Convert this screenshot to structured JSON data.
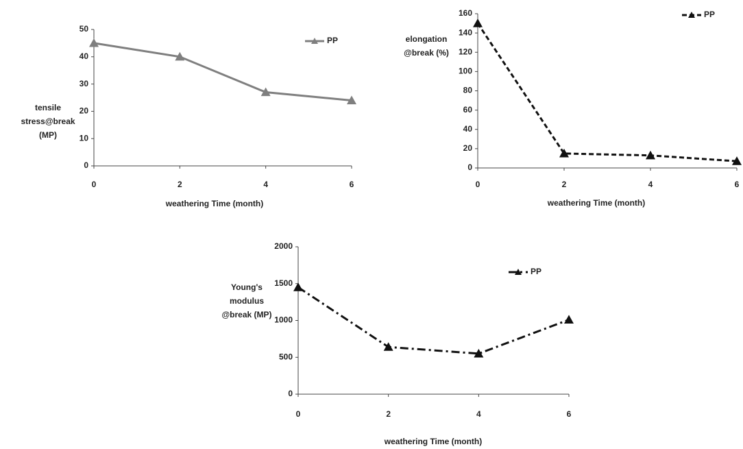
{
  "chart_data": [
    {
      "type": "line",
      "ylabel": [
        "tensile",
        "stress@break",
        "(MP)"
      ],
      "xlabel": "weathering Time (month)",
      "x": [
        0,
        2,
        4,
        6
      ],
      "xlim": [
        0,
        6
      ],
      "xticks": [
        0,
        2,
        4,
        6
      ],
      "ylim": [
        0,
        50
      ],
      "yticks": [
        0,
        10,
        20,
        30,
        40,
        50
      ],
      "series": [
        {
          "name": "PP",
          "color": "#7f7f7f",
          "line_style": "solid",
          "values": [
            45,
            40,
            27,
            24
          ]
        }
      ]
    },
    {
      "type": "line",
      "ylabel": [
        "elongation",
        "@break (%)"
      ],
      "xlabel": "weathering Time (month)",
      "x": [
        0,
        2,
        4,
        6
      ],
      "xlim": [
        0,
        6
      ],
      "xticks": [
        0,
        2,
        4,
        6
      ],
      "ylim": [
        0,
        160
      ],
      "yticks": [
        0,
        20,
        40,
        60,
        80,
        100,
        120,
        140,
        160
      ],
      "series": [
        {
          "name": "PP",
          "color": "#111111",
          "line_style": "dashed",
          "values": [
            150,
            15,
            13,
            7
          ]
        }
      ]
    },
    {
      "type": "line",
      "ylabel": [
        "Young's",
        "modulus",
        "@break (MP)"
      ],
      "xlabel": "weathering Time (month)",
      "x": [
        0,
        2,
        4,
        6
      ],
      "xlim": [
        0,
        6
      ],
      "xticks": [
        0,
        2,
        4,
        6
      ],
      "ylim": [
        0,
        2000
      ],
      "yticks": [
        0,
        500,
        1000,
        1500,
        2000
      ],
      "series": [
        {
          "name": "PP",
          "color": "#111111",
          "line_style": "dashdot",
          "values": [
            1450,
            640,
            550,
            1010
          ]
        }
      ]
    }
  ]
}
